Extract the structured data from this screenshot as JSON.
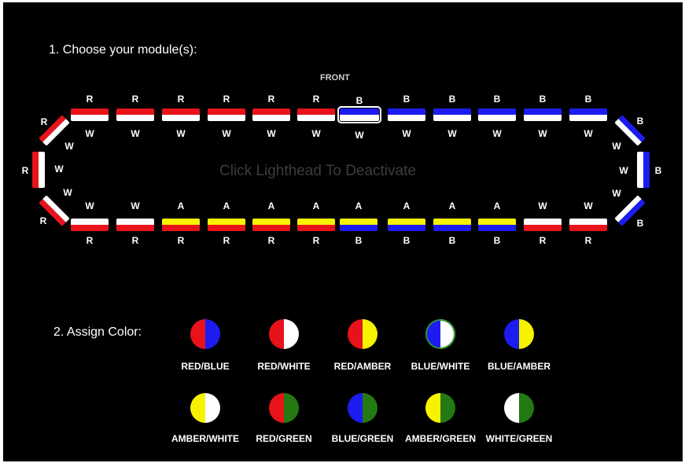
{
  "steps": {
    "choose": "1. Choose your module(s):",
    "assign": "2. Assign Color:"
  },
  "front_label": "FRONT",
  "hint": "Click Lighthead To Deactivate",
  "colors": {
    "red": "#e8121b",
    "white": "#ffffff",
    "blue": "#1c1cf0",
    "amber": "#f7f200",
    "green": "#237a12"
  },
  "top_row": {
    "outer": [
      "R",
      "R",
      "R",
      "R",
      "R",
      "R",
      "B",
      "B",
      "B",
      "B",
      "B",
      "B"
    ],
    "inner": [
      "W",
      "W",
      "W",
      "W",
      "W",
      "W",
      "W",
      "W",
      "W",
      "W",
      "W",
      "W"
    ]
  },
  "bottom_row": {
    "inner": [
      "W",
      "W",
      "A",
      "A",
      "A",
      "A",
      "A",
      "A",
      "A",
      "A",
      "W",
      "W"
    ],
    "outer": [
      "R",
      "R",
      "R",
      "R",
      "R",
      "R",
      "B",
      "B",
      "B",
      "B",
      "R",
      "R"
    ]
  },
  "ends": {
    "left_top": {
      "outer": "R",
      "inner": "W"
    },
    "left_mid": {
      "outer": "R",
      "inner": "W"
    },
    "left_bottom": {
      "outer": "R",
      "inner": "W"
    },
    "right_top": {
      "outer": "B",
      "inner": "W"
    },
    "right_mid": {
      "outer": "B",
      "inner": "W"
    },
    "right_bottom": {
      "outer": "B",
      "inner": "W"
    }
  },
  "swatches": [
    {
      "label": "RED/BLUE"
    },
    {
      "label": "RED/WHITE"
    },
    {
      "label": "RED/AMBER"
    },
    {
      "label": "BLUE/WHITE"
    },
    {
      "label": "BLUE/AMBER"
    },
    {
      "label": "AMBER/WHITE"
    },
    {
      "label": "RED/GREEN"
    },
    {
      "label": "BLUE/GREEN"
    },
    {
      "label": "AMBER/GREEN"
    },
    {
      "label": "WHITE/GREEN"
    }
  ]
}
